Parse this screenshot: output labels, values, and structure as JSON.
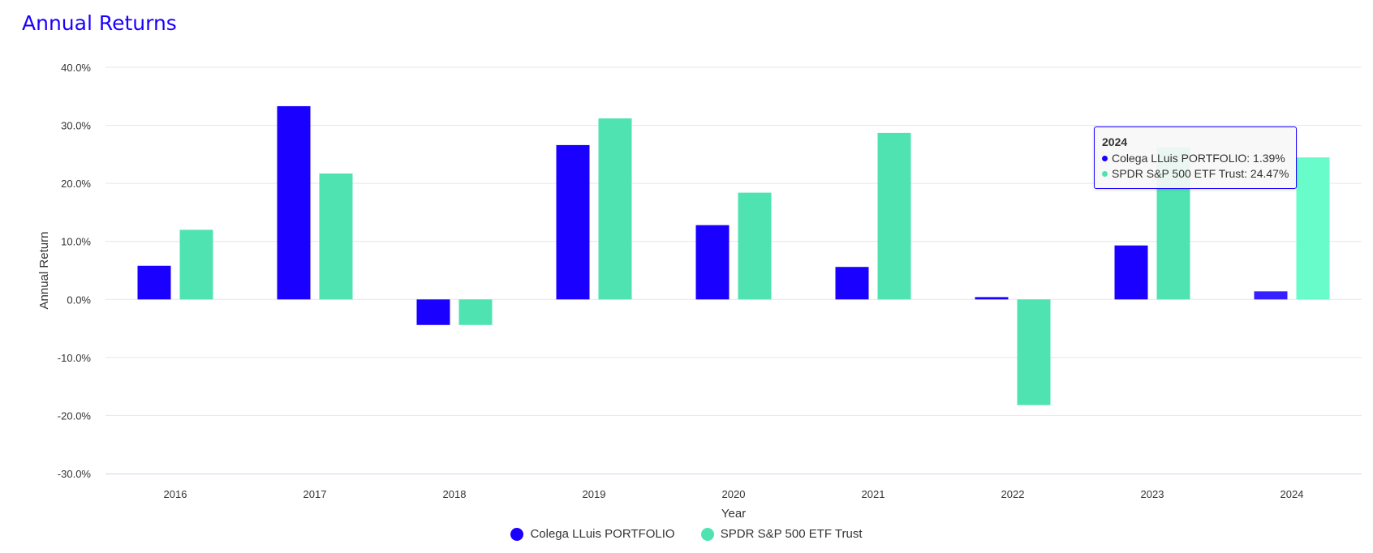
{
  "title": "Annual Returns",
  "colors": {
    "title": "#1a00ff",
    "grid": "#e6e6e6",
    "axis": "#ccd6eb"
  },
  "chart_data": {
    "type": "bar",
    "categories": [
      "2016",
      "2017",
      "2018",
      "2019",
      "2020",
      "2021",
      "2022",
      "2023",
      "2024"
    ],
    "series": [
      {
        "name": "Colega LLuis PORTFOLIO",
        "color": "#1a00ff",
        "hover_color": "#3620ff",
        "values": [
          5.8,
          33.3,
          -4.4,
          26.6,
          12.8,
          5.6,
          0.4,
          9.3,
          1.39
        ]
      },
      {
        "name": "SPDR S&P 500 ETF Trust",
        "color": "#4fe3b2",
        "hover_color": "#68fcca",
        "values": [
          12.0,
          21.7,
          -4.4,
          31.2,
          18.4,
          28.7,
          -18.2,
          26.2,
          24.47
        ]
      }
    ],
    "xlabel": "Year",
    "ylabel": "Annual Return",
    "ylim": [
      -30,
      40
    ],
    "yticks": [
      "-30.0%",
      "-20.0%",
      "-10.0%",
      "0.0%",
      "10.0%",
      "20.0%",
      "30.0%",
      "40.0%"
    ],
    "grid": true,
    "legend_position": "bottom-center",
    "highlighted_category": "2024"
  },
  "tooltip": {
    "header": "2024",
    "lines": [
      "Colega LLuis PORTFOLIO: 1.39%",
      "SPDR S&P 500 ETF Trust: 24.47%"
    ]
  }
}
